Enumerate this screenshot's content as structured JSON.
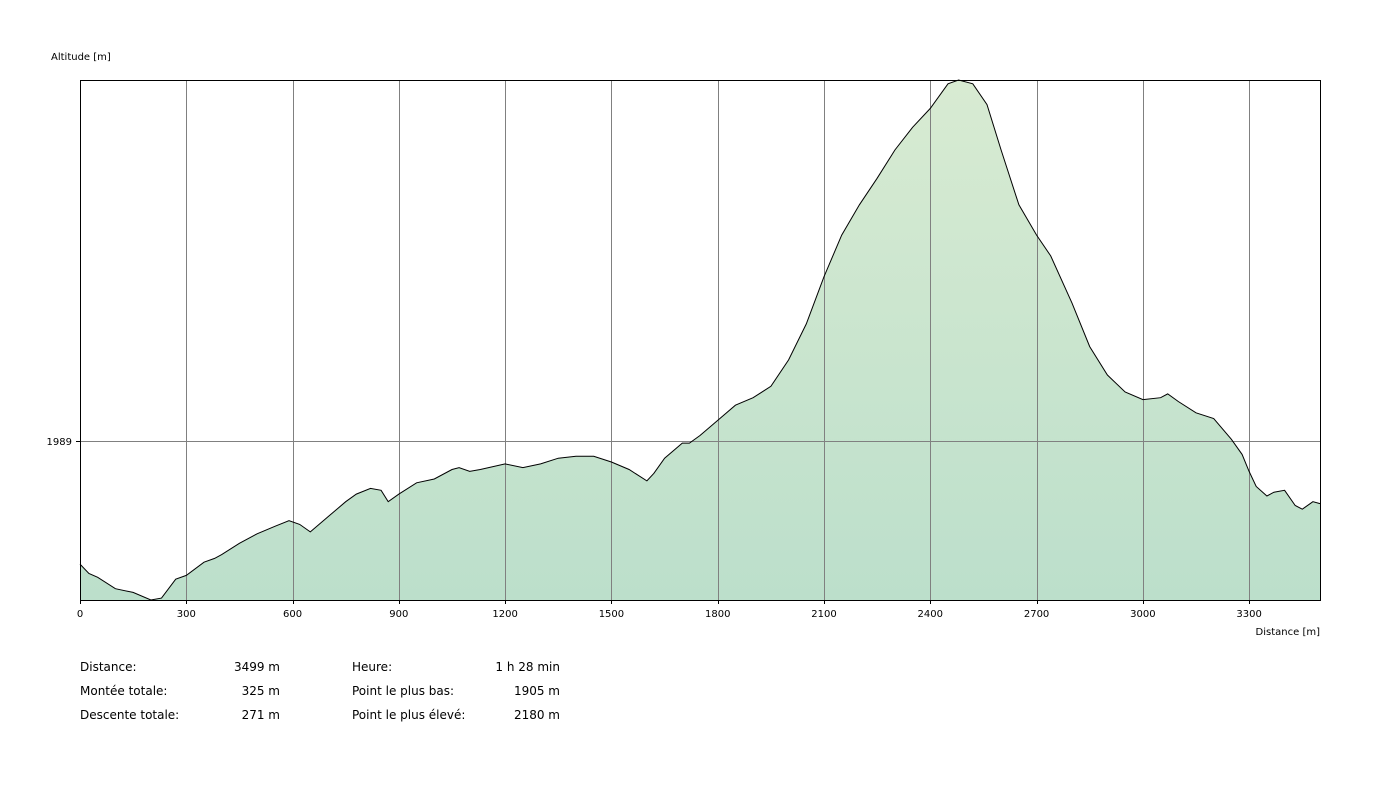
{
  "chart_data": {
    "type": "area",
    "ylabel": "Altitude [m]",
    "xlabel": "Distance [m]",
    "xlim": [
      0,
      3500
    ],
    "ylim": [
      1905,
      2180
    ],
    "x_ticks": [
      0,
      300,
      600,
      900,
      1200,
      1500,
      1800,
      2100,
      2400,
      2700,
      3000,
      3300
    ],
    "y_ticks": [
      1989
    ],
    "grid": true,
    "colors": {
      "fill_top": "#d8ebd2",
      "fill_bottom": "#bcdfcb",
      "line": "#000000",
      "grid": "#808080"
    },
    "x": [
      0,
      25,
      50,
      100,
      150,
      200,
      230,
      270,
      300,
      350,
      380,
      400,
      450,
      500,
      550,
      590,
      620,
      650,
      700,
      750,
      780,
      820,
      850,
      870,
      900,
      950,
      1000,
      1050,
      1070,
      1100,
      1130,
      1200,
      1250,
      1300,
      1350,
      1400,
      1450,
      1500,
      1550,
      1600,
      1620,
      1650,
      1700,
      1720,
      1750,
      1800,
      1850,
      1900,
      1950,
      2000,
      2050,
      2100,
      2150,
      2200,
      2250,
      2300,
      2350,
      2400,
      2450,
      2480,
      2520,
      2560,
      2600,
      2650,
      2700,
      2740,
      2800,
      2850,
      2900,
      2950,
      3000,
      3050,
      3070,
      3100,
      3150,
      3200,
      3250,
      3280,
      3300,
      3320,
      3350,
      3370,
      3400,
      3430,
      3450,
      3480,
      3500
    ],
    "y": [
      1924,
      1919,
      1917,
      1911,
      1909,
      1905,
      1906,
      1916,
      1918,
      1925,
      1927,
      1929,
      1935,
      1940,
      1944,
      1947,
      1945,
      1941,
      1949,
      1957,
      1961,
      1964,
      1963,
      1957,
      1961,
      1967,
      1969,
      1974,
      1975,
      1973,
      1974,
      1977,
      1975,
      1977,
      1980,
      1981,
      1981,
      1978,
      1974,
      1968,
      1972,
      1980,
      1988,
      1988,
      1992,
      2000,
      2008,
      2012,
      2018,
      2032,
      2051,
      2076,
      2098,
      2114,
      2128,
      2143,
      2155,
      2165,
      2178,
      2180,
      2178,
      2167,
      2143,
      2114,
      2098,
      2087,
      2062,
      2039,
      2024,
      2015,
      2011,
      2012,
      2014,
      2010,
      2004,
      2001,
      1990,
      1982,
      1973,
      1965,
      1960,
      1962,
      1963,
      1955,
      1953,
      1957,
      1956
    ]
  },
  "stats_left": [
    {
      "label": "Distance:",
      "value": "3499 m"
    },
    {
      "label": "Montée totale:",
      "value": "325 m"
    },
    {
      "label": "Descente totale:",
      "value": "271 m"
    }
  ],
  "stats_right": [
    {
      "label": "Heure:",
      "value": "1 h 28 min"
    },
    {
      "label": "Point le plus bas:",
      "value": "1905 m"
    },
    {
      "label": "Point le plus élevé:",
      "value": "2180 m"
    }
  ]
}
